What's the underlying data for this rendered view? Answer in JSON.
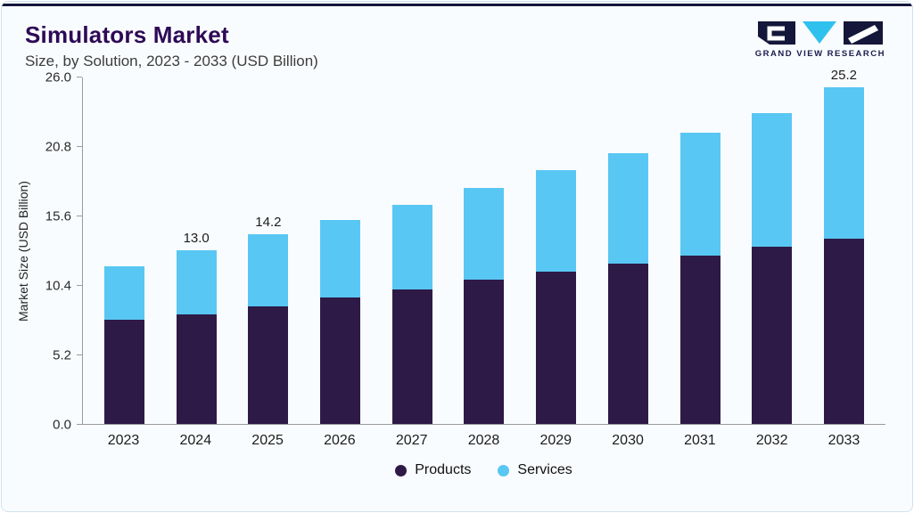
{
  "header": {
    "title": "Simulators Market",
    "subtitle": "Size, by Solution, 2023 - 2033 (USD Billion)",
    "logo_text": "GRAND VIEW RESEARCH"
  },
  "colors": {
    "products": "#2E1A47",
    "services": "#59C7F3",
    "title": "#2D0A55",
    "accent_bar": "#14173A"
  },
  "chart_data": {
    "type": "bar",
    "stacked": true,
    "title": "Simulators Market Size, by Solution, 2023 - 2033 (USD Billion)",
    "ylabel": "Market Size (USD Billion)",
    "xlabel": "",
    "ylim": [
      0,
      26
    ],
    "ytick_labels": [
      "0.0",
      "5.2",
      "10.4",
      "15.6",
      "20.8",
      "26.0"
    ],
    "grid": false,
    "legend_position": "bottom",
    "categories": [
      "2023",
      "2024",
      "2025",
      "2026",
      "2027",
      "2028",
      "2029",
      "2030",
      "2031",
      "2032",
      "2033"
    ],
    "series": [
      {
        "name": "Products",
        "color": "#2E1A47",
        "values": [
          7.8,
          8.2,
          8.8,
          9.5,
          10.1,
          10.8,
          11.4,
          12.0,
          12.6,
          13.3,
          13.9
        ]
      },
      {
        "name": "Services",
        "color": "#59C7F3",
        "values": [
          4.0,
          4.8,
          5.4,
          5.8,
          6.3,
          6.9,
          7.6,
          8.3,
          9.2,
          10.0,
          11.3
        ]
      }
    ],
    "totals": [
      11.8,
      13.0,
      14.2,
      15.3,
      16.4,
      17.7,
      19.0,
      20.3,
      21.8,
      23.3,
      25.2
    ],
    "bar_labels": [
      "",
      "13.0",
      "14.2",
      "",
      "",
      "",
      "",
      "",
      "",
      "",
      "25.2"
    ]
  }
}
